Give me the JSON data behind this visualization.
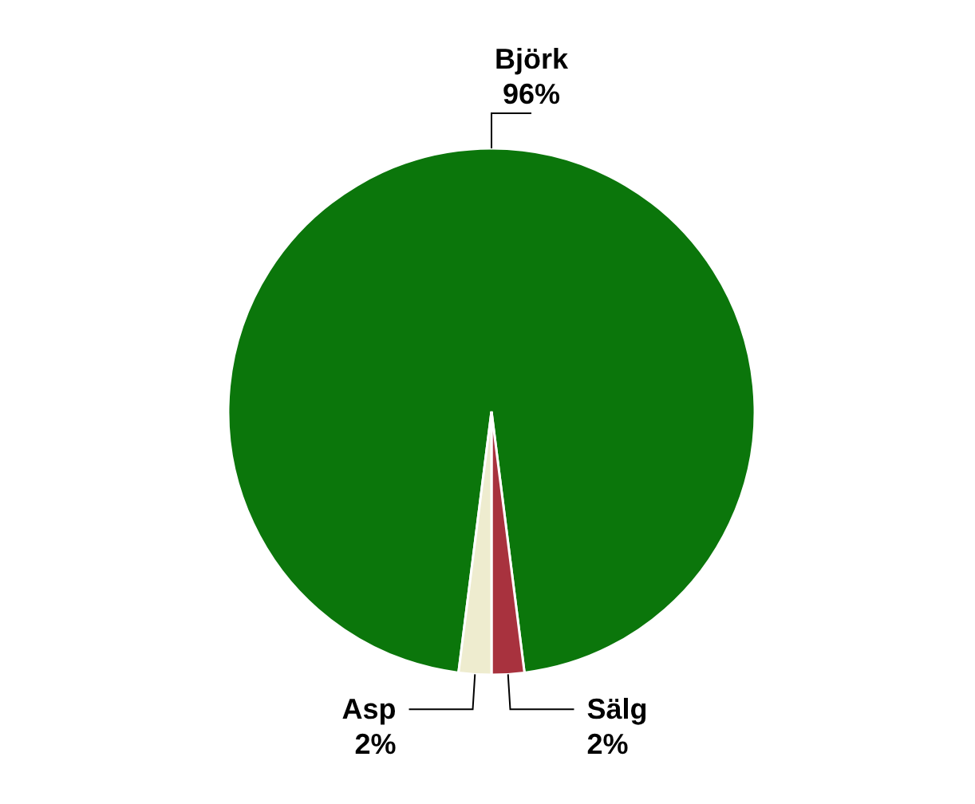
{
  "chart_data": {
    "type": "pie",
    "categories": [
      "Björk",
      "Sälg",
      "Asp"
    ],
    "values": [
      96,
      2,
      2
    ],
    "colors": [
      "#0b760b",
      "#a8323e",
      "#eeeccf"
    ],
    "value_labels": [
      "96%",
      "2%",
      "2%"
    ]
  }
}
